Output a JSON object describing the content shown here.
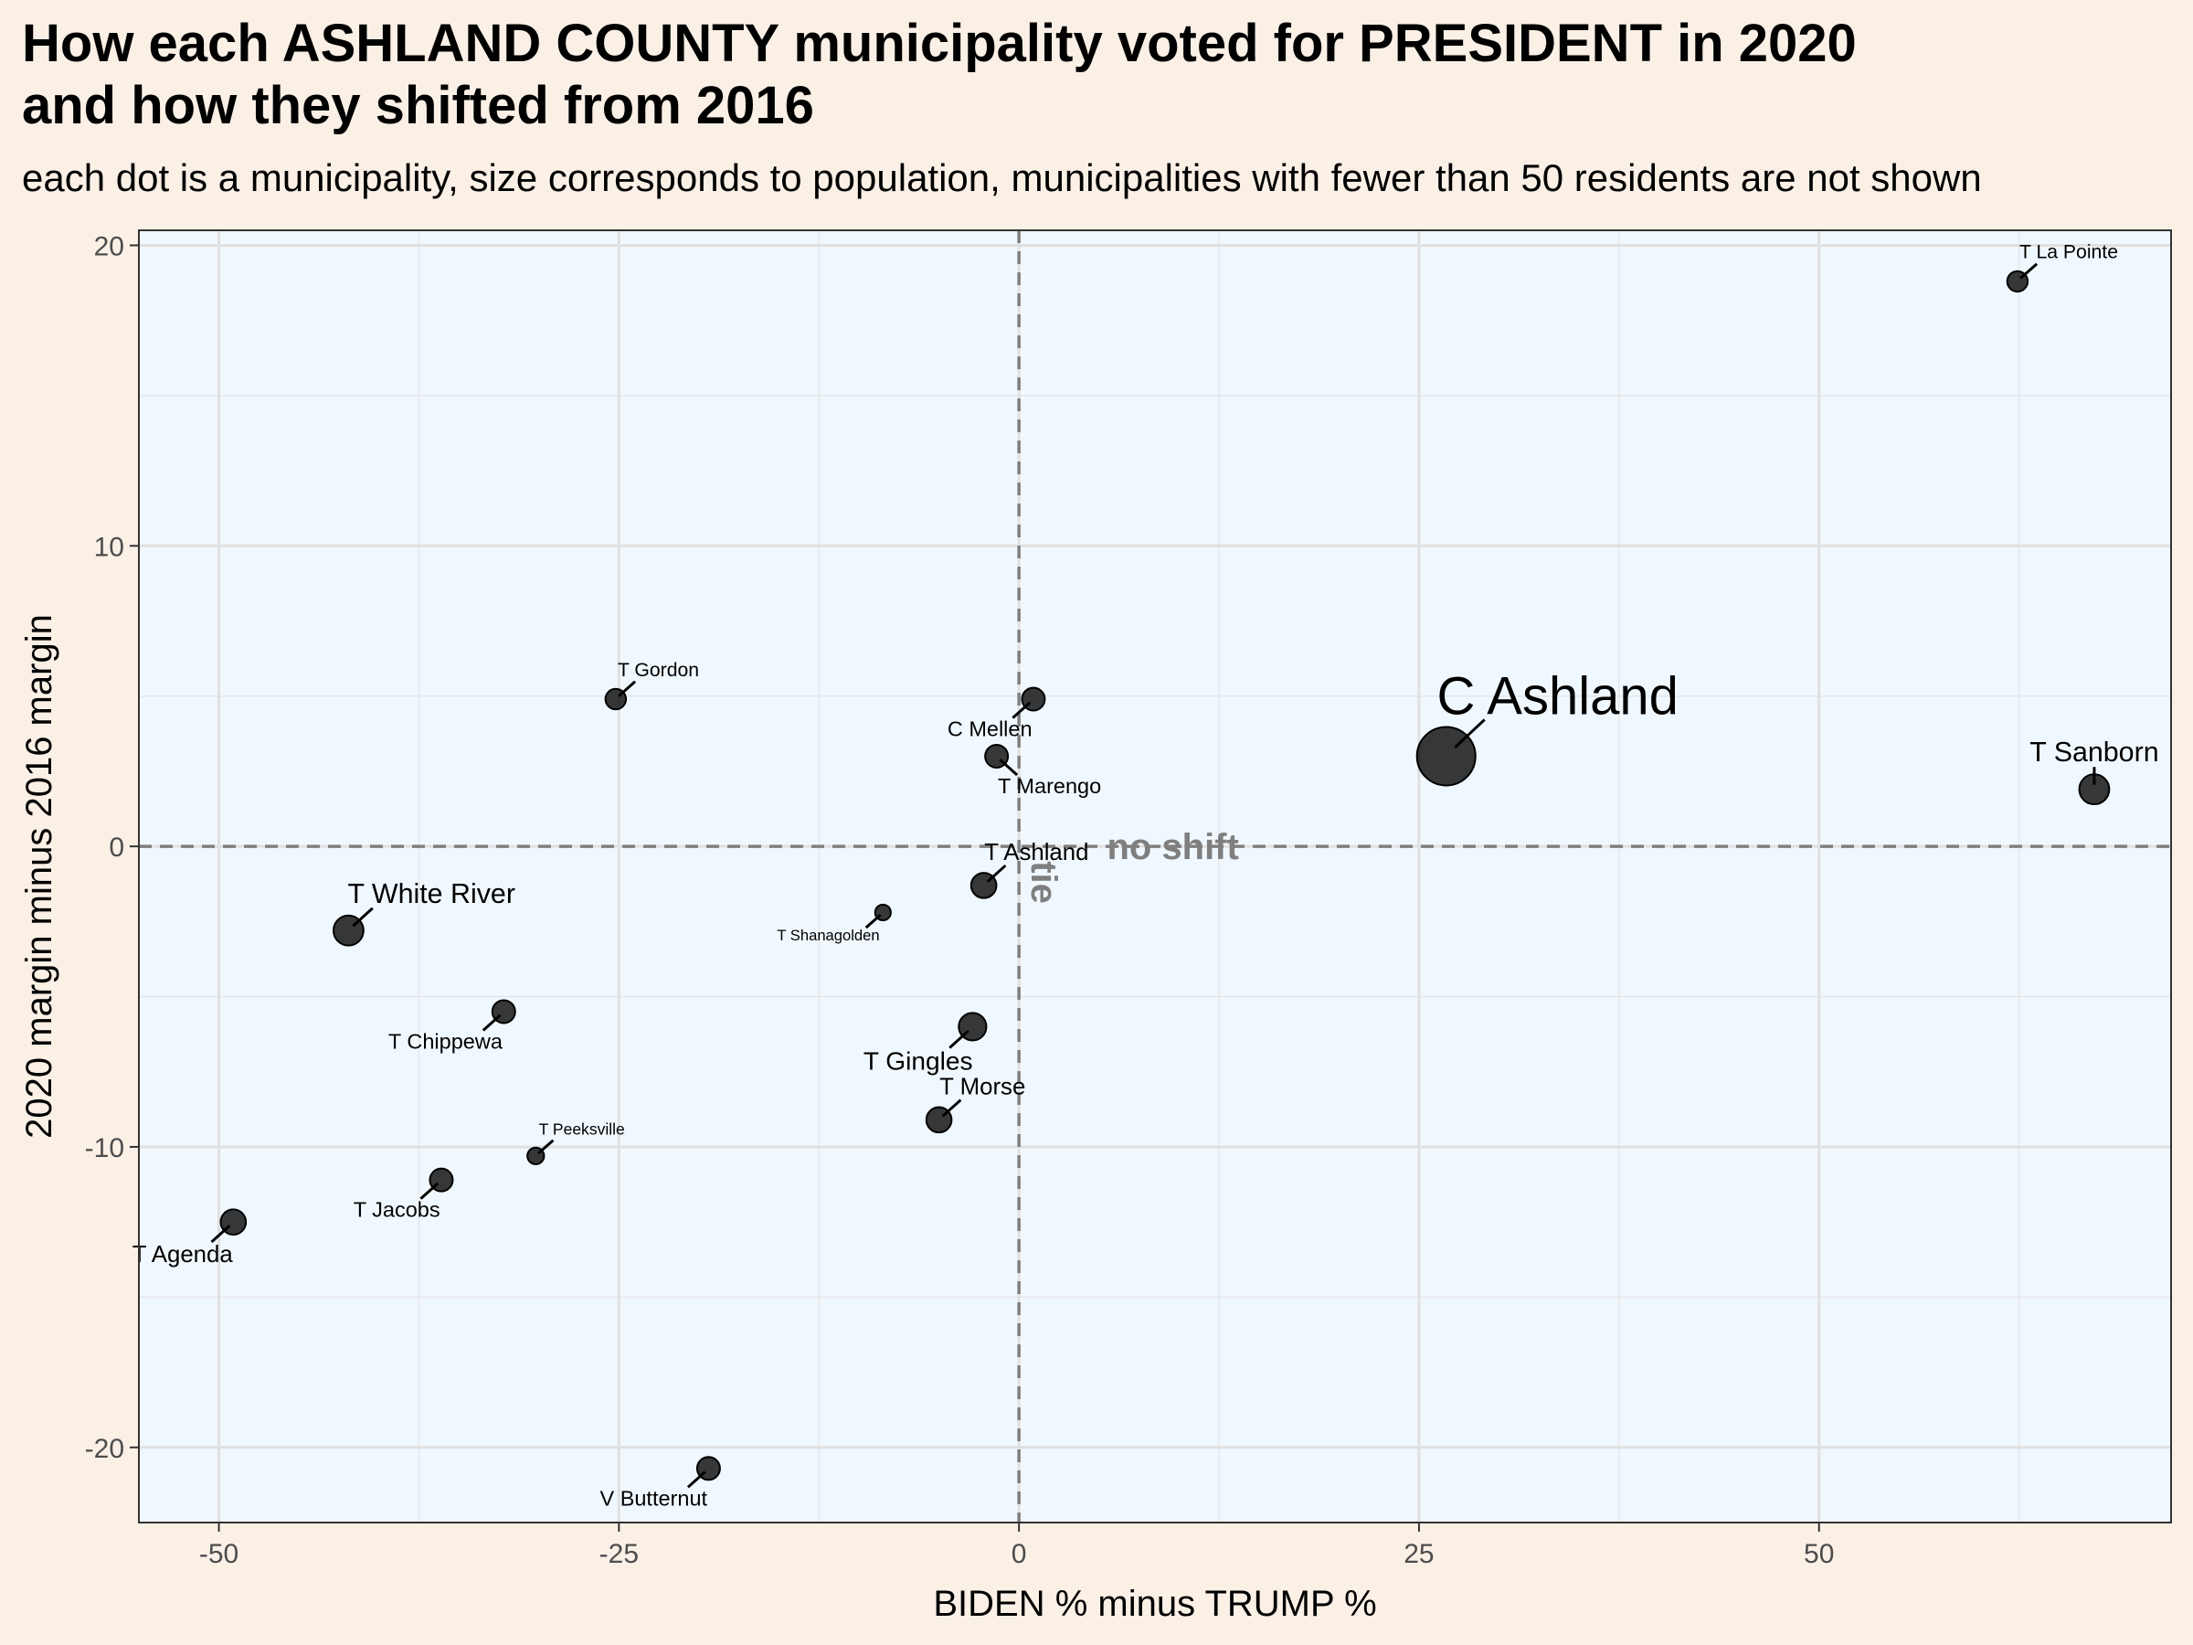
{
  "title_line1": "How each ASHLAND COUNTY municipality voted for PRESIDENT in 2020",
  "title_line2": "and how they shifted from 2016",
  "subtitle": "each dot is a municipality, size corresponds to population, municipalities with fewer than 50 residents are not shown",
  "colors": {
    "background": "#faf0e6",
    "panel": "#f0f8ff",
    "point": "#000000",
    "reference_line": "#7f7f7f"
  },
  "chart_data": {
    "type": "scatter",
    "xlabel": "BIDEN % minus TRUMP %",
    "ylabel": "2020 margin minus 2016 margin",
    "xlim": [
      -55,
      72
    ],
    "ylim": [
      -22.5,
      20.5
    ],
    "x_ticks": [
      -50,
      -25,
      0,
      25,
      50
    ],
    "x_tick_labels": [
      "-50",
      "-25",
      "0",
      "25",
      "50"
    ],
    "y_ticks": [
      -20,
      -10,
      0,
      10,
      20
    ],
    "y_tick_labels": [
      "-20",
      "-10",
      "0",
      "10",
      "20"
    ],
    "grid": true,
    "reference_lines": [
      {
        "axis": "x",
        "value": 0,
        "label": "tie"
      },
      {
        "axis": "y",
        "value": 0,
        "label": "no shift"
      }
    ],
    "points": [
      {
        "name": "T La Pointe",
        "x": 62.4,
        "y": 18.8,
        "size": 2,
        "label_pos": "above-right"
      },
      {
        "name": "T Gordon",
        "x": -25.2,
        "y": 4.9,
        "size": 2,
        "label_pos": "above-right"
      },
      {
        "name": "C Mellen",
        "x": 0.9,
        "y": 4.9,
        "size": 2.5,
        "label_pos": "below-left"
      },
      {
        "name": "T Marengo",
        "x": -1.4,
        "y": 3.0,
        "size": 2.5,
        "label_pos": "below-right"
      },
      {
        "name": "C Ashland",
        "x": 26.7,
        "y": 3.0,
        "size": 10,
        "label_pos": "above-right"
      },
      {
        "name": "T Sanborn",
        "x": 67.2,
        "y": 1.9,
        "size": 4,
        "label_pos": "above"
      },
      {
        "name": "T Ashland",
        "x": -2.2,
        "y": -1.3,
        "size": 3,
        "label_pos": "above-right"
      },
      {
        "name": "T Shanagolden",
        "x": -8.5,
        "y": -2.2,
        "size": 1,
        "label_pos": "below-left"
      },
      {
        "name": "T White River",
        "x": -41.9,
        "y": -2.8,
        "size": 4,
        "label_pos": "above-right"
      },
      {
        "name": "T Chippewa",
        "x": -32.2,
        "y": -5.5,
        "size": 2.5,
        "label_pos": "below-left"
      },
      {
        "name": "T Gingles",
        "x": -2.9,
        "y": -6.0,
        "size": 3.5,
        "label_pos": "below-left"
      },
      {
        "name": "T Morse",
        "x": -5.0,
        "y": -9.1,
        "size": 3,
        "label_pos": "above-right"
      },
      {
        "name": "T Peeksville",
        "x": -30.2,
        "y": -10.3,
        "size": 1.2,
        "label_pos": "above-right"
      },
      {
        "name": "T Jacobs",
        "x": -36.1,
        "y": -11.1,
        "size": 2.5,
        "label_pos": "below-left"
      },
      {
        "name": "T Agenda",
        "x": -49.1,
        "y": -12.5,
        "size": 3,
        "label_pos": "below-left"
      },
      {
        "name": "V Butternut",
        "x": -19.4,
        "y": -20.7,
        "size": 2.5,
        "label_pos": "below-left"
      }
    ]
  }
}
